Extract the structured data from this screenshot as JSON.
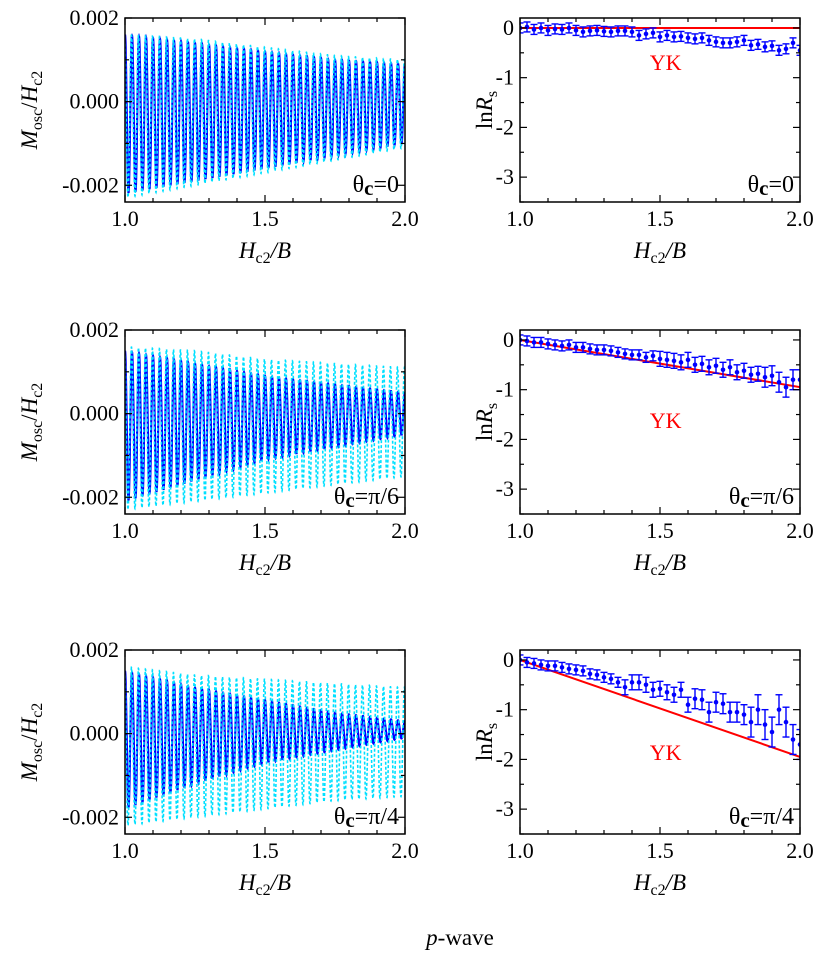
{
  "caption": {
    "italic": "p",
    "rest": "-wave"
  },
  "colors": {
    "solid": "#0000ff",
    "dashed": "#00e0ff",
    "fit": "#ff0000",
    "points": "#0000ff"
  },
  "chart_data": [
    {
      "type": "line",
      "row": 0,
      "annotation": {
        "theta": "θ",
        "sub": "c",
        "value": "=0"
      },
      "xlabel": {
        "main": "H",
        "sub": "c2",
        "rest": "/B"
      },
      "ylabel": {
        "main": "M",
        "sub": "osc",
        "mid": "/",
        "main2": "H",
        "sub2": "c2"
      },
      "xlim": [
        1.0,
        2.0
      ],
      "ylim": [
        -0.0024,
        0.002
      ],
      "xticks": [
        "1.0",
        "1.5",
        "2.0"
      ],
      "yticks": [
        "0.002",
        "0.000",
        "-0.002"
      ],
      "oscillation_period": 0.025,
      "series": [
        {
          "style": "solid",
          "envelope_x": [
            1.0,
            1.25,
            1.5,
            1.75,
            2.0
          ],
          "upper": [
            0.0016,
            0.0014,
            0.0012,
            0.001,
            0.0009
          ],
          "lower": [
            -0.0022,
            -0.0019,
            -0.0016,
            -0.0013,
            -0.001
          ]
        },
        {
          "style": "dashed",
          "envelope_x": [
            1.0,
            1.25,
            1.5,
            1.75,
            2.0
          ],
          "upper": [
            0.0016,
            0.0015,
            0.0013,
            0.0011,
            0.001
          ],
          "lower": [
            -0.0023,
            -0.002,
            -0.0017,
            -0.0014,
            -0.0011
          ]
        }
      ]
    },
    {
      "type": "line",
      "row": 1,
      "annotation": {
        "theta": "θ",
        "sub": "c",
        "value": "=π/6"
      },
      "xlabel": {
        "main": "H",
        "sub": "c2",
        "rest": "/B"
      },
      "ylabel": {
        "main": "M",
        "sub": "osc",
        "mid": "/",
        "main2": "H",
        "sub2": "c2"
      },
      "xlim": [
        1.0,
        2.0
      ],
      "ylim": [
        -0.0024,
        0.002
      ],
      "xticks": [
        "1.0",
        "1.5",
        "2.0"
      ],
      "yticks": [
        "0.002",
        "0.000",
        "-0.002"
      ],
      "oscillation_period": 0.025,
      "series": [
        {
          "style": "solid",
          "envelope_x": [
            1.0,
            1.25,
            1.5,
            1.75,
            2.0
          ],
          "upper": [
            0.0015,
            0.0012,
            0.0009,
            0.0007,
            0.0005
          ],
          "lower": [
            -0.0021,
            -0.0016,
            -0.0011,
            -0.0008,
            -0.0005
          ]
        },
        {
          "style": "dashed",
          "envelope_x": [
            1.0,
            1.25,
            1.5,
            1.75,
            2.0
          ],
          "upper": [
            0.0016,
            0.0015,
            0.0013,
            0.0012,
            0.0011
          ],
          "lower": [
            -0.0023,
            -0.0021,
            -0.0019,
            -0.0017,
            -0.0015
          ]
        }
      ]
    },
    {
      "type": "line",
      "row": 2,
      "annotation": {
        "theta": "θ",
        "sub": "c",
        "value": "=π/4"
      },
      "xlabel": {
        "main": "H",
        "sub": "c2",
        "rest": "/B"
      },
      "ylabel": {
        "main": "M",
        "sub": "osc",
        "mid": "/",
        "main2": "H",
        "sub2": "c2"
      },
      "xlim": [
        1.0,
        2.0
      ],
      "ylim": [
        -0.0024,
        0.002
      ],
      "xticks": [
        "1.0",
        "1.5",
        "2.0"
      ],
      "yticks": [
        "0.002",
        "0.000",
        "-0.002"
      ],
      "oscillation_period": 0.025,
      "series": [
        {
          "style": "solid",
          "envelope_x": [
            1.0,
            1.25,
            1.5,
            1.75,
            2.0
          ],
          "upper": [
            0.0015,
            0.0011,
            0.0008,
            0.0005,
            0.0003
          ],
          "lower": [
            -0.0018,
            -0.0012,
            -0.0007,
            -0.0004,
            -0.0001
          ]
        },
        {
          "style": "dashed",
          "envelope_x": [
            1.0,
            1.25,
            1.5,
            1.75,
            2.0
          ],
          "upper": [
            0.0016,
            0.0014,
            0.0013,
            0.0012,
            0.0011
          ],
          "lower": [
            -0.0022,
            -0.002,
            -0.0018,
            -0.0016,
            -0.0015
          ]
        }
      ]
    },
    {
      "type": "scatter",
      "row": 0,
      "annotation": {
        "theta": "θ",
        "sub": "c",
        "value": "=0"
      },
      "fit_label": "YK",
      "xlabel": {
        "main": "H",
        "sub": "c2",
        "rest": "/B"
      },
      "ylabel": {
        "pre": "ln",
        "main": "R",
        "sub": "s"
      },
      "xlim": [
        1.0,
        2.0
      ],
      "ylim": [
        -3.5,
        0.2
      ],
      "xticks": [
        "1.0",
        "1.5",
        "2.0"
      ],
      "yticks": [
        "0",
        "-1",
        "-2",
        "-3"
      ],
      "x": [
        1.0,
        1.025,
        1.05,
        1.075,
        1.1,
        1.125,
        1.15,
        1.175,
        1.2,
        1.225,
        1.25,
        1.275,
        1.3,
        1.325,
        1.35,
        1.375,
        1.4,
        1.425,
        1.45,
        1.475,
        1.5,
        1.525,
        1.55,
        1.575,
        1.6,
        1.625,
        1.65,
        1.675,
        1.7,
        1.725,
        1.75,
        1.775,
        1.8,
        1.825,
        1.85,
        1.875,
        1.9,
        1.925,
        1.95,
        1.975,
        2.0
      ],
      "y": [
        0.0,
        0.02,
        -0.03,
        0.0,
        -0.05,
        -0.02,
        -0.03,
        0.0,
        -0.05,
        -0.08,
        -0.06,
        -0.05,
        -0.07,
        -0.08,
        -0.06,
        -0.06,
        -0.08,
        -0.15,
        -0.12,
        -0.1,
        -0.18,
        -0.15,
        -0.18,
        -0.17,
        -0.2,
        -0.22,
        -0.2,
        -0.25,
        -0.28,
        -0.3,
        -0.3,
        -0.28,
        -0.25,
        -0.35,
        -0.33,
        -0.38,
        -0.36,
        -0.45,
        -0.42,
        -0.3,
        -0.45
      ],
      "yerr": [
        0.1,
        0.1,
        0.1,
        0.1,
        0.1,
        0.1,
        0.1,
        0.1,
        0.1,
        0.1,
        0.1,
        0.1,
        0.1,
        0.1,
        0.1,
        0.1,
        0.1,
        0.1,
        0.1,
        0.1,
        0.1,
        0.1,
        0.1,
        0.1,
        0.1,
        0.1,
        0.1,
        0.1,
        0.1,
        0.1,
        0.1,
        0.1,
        0.1,
        0.1,
        0.1,
        0.1,
        0.1,
        0.1,
        0.1,
        0.1,
        0.1
      ],
      "fit": {
        "x": [
          1.0,
          2.0
        ],
        "y": [
          0.0,
          0.0
        ]
      }
    },
    {
      "type": "scatter",
      "row": 1,
      "annotation": {
        "theta": "θ",
        "sub": "c",
        "value": "=π/6"
      },
      "fit_label": "YK",
      "xlabel": {
        "main": "H",
        "sub": "c2",
        "rest": "/B"
      },
      "ylabel": {
        "pre": "ln",
        "main": "R",
        "sub": "s"
      },
      "xlim": [
        1.0,
        2.0
      ],
      "ylim": [
        -3.5,
        0.2
      ],
      "xticks": [
        "1.0",
        "1.5",
        "2.0"
      ],
      "yticks": [
        "0",
        "-1",
        "-2",
        "-3"
      ],
      "x": [
        1.0,
        1.025,
        1.05,
        1.075,
        1.1,
        1.125,
        1.15,
        1.175,
        1.2,
        1.225,
        1.25,
        1.275,
        1.3,
        1.325,
        1.35,
        1.375,
        1.4,
        1.425,
        1.45,
        1.475,
        1.5,
        1.525,
        1.55,
        1.575,
        1.6,
        1.625,
        1.65,
        1.675,
        1.7,
        1.725,
        1.75,
        1.775,
        1.8,
        1.825,
        1.85,
        1.875,
        1.9,
        1.925,
        1.95,
        1.975,
        2.0
      ],
      "y": [
        0.0,
        -0.02,
        -0.05,
        -0.05,
        -0.08,
        -0.1,
        -0.12,
        -0.1,
        -0.15,
        -0.15,
        -0.18,
        -0.2,
        -0.2,
        -0.22,
        -0.25,
        -0.28,
        -0.3,
        -0.3,
        -0.35,
        -0.32,
        -0.38,
        -0.4,
        -0.42,
        -0.45,
        -0.4,
        -0.5,
        -0.48,
        -0.55,
        -0.52,
        -0.6,
        -0.55,
        -0.65,
        -0.62,
        -0.7,
        -0.68,
        -0.75,
        -0.72,
        -0.85,
        -0.95,
        -0.8,
        -0.8
      ],
      "yerr": [
        0.1,
        0.1,
        0.1,
        0.1,
        0.1,
        0.1,
        0.1,
        0.1,
        0.1,
        0.1,
        0.1,
        0.1,
        0.1,
        0.1,
        0.1,
        0.1,
        0.1,
        0.1,
        0.1,
        0.1,
        0.15,
        0.15,
        0.15,
        0.15,
        0.15,
        0.15,
        0.15,
        0.15,
        0.15,
        0.15,
        0.15,
        0.15,
        0.15,
        0.15,
        0.15,
        0.2,
        0.2,
        0.2,
        0.2,
        0.2,
        0.2
      ],
      "fit": {
        "x": [
          1.0,
          2.0
        ],
        "y": [
          0.0,
          -0.95
        ]
      }
    },
    {
      "type": "scatter",
      "row": 2,
      "annotation": {
        "theta": "θ",
        "sub": "c",
        "value": "=π/4"
      },
      "fit_label": "YK",
      "xlabel": {
        "main": "H",
        "sub": "c2",
        "rest": "/B"
      },
      "ylabel": {
        "pre": "ln",
        "main": "R",
        "sub": "s"
      },
      "xlim": [
        1.0,
        2.0
      ],
      "ylim": [
        -3.5,
        0.2
      ],
      "xticks": [
        "1.0",
        "1.5",
        "2.0"
      ],
      "yticks": [
        "0",
        "-1",
        "-2",
        "-3"
      ],
      "x": [
        1.0,
        1.025,
        1.05,
        1.075,
        1.1,
        1.125,
        1.15,
        1.175,
        1.2,
        1.225,
        1.25,
        1.275,
        1.3,
        1.325,
        1.35,
        1.375,
        1.4,
        1.425,
        1.45,
        1.475,
        1.5,
        1.525,
        1.55,
        1.575,
        1.6,
        1.625,
        1.65,
        1.675,
        1.7,
        1.725,
        1.75,
        1.775,
        1.8,
        1.825,
        1.85,
        1.875,
        1.9,
        1.925,
        1.95,
        1.975,
        2.0
      ],
      "y": [
        0.0,
        -0.05,
        -0.07,
        -0.1,
        -0.12,
        -0.12,
        -0.15,
        -0.18,
        -0.2,
        -0.22,
        -0.28,
        -0.3,
        -0.35,
        -0.38,
        -0.45,
        -0.55,
        -0.45,
        -0.45,
        -0.5,
        -0.6,
        -0.58,
        -0.65,
        -0.7,
        -0.6,
        -0.9,
        -0.78,
        -0.8,
        -1.05,
        -0.85,
        -0.88,
        -1.05,
        -1.05,
        -1.1,
        -1.25,
        -1.0,
        -1.3,
        -1.45,
        -1.0,
        -1.25,
        -1.6,
        -1.7
      ],
      "yerr": [
        0.1,
        0.1,
        0.1,
        0.1,
        0.1,
        0.1,
        0.1,
        0.1,
        0.1,
        0.1,
        0.1,
        0.1,
        0.1,
        0.1,
        0.1,
        0.15,
        0.15,
        0.15,
        0.15,
        0.15,
        0.15,
        0.15,
        0.15,
        0.15,
        0.15,
        0.2,
        0.2,
        0.2,
        0.2,
        0.2,
        0.2,
        0.2,
        0.2,
        0.3,
        0.3,
        0.3,
        0.3,
        0.3,
        0.3,
        0.3,
        0.3
      ],
      "fit": {
        "x": [
          1.0,
          2.0
        ],
        "y": [
          0.0,
          -1.95
        ]
      }
    }
  ]
}
